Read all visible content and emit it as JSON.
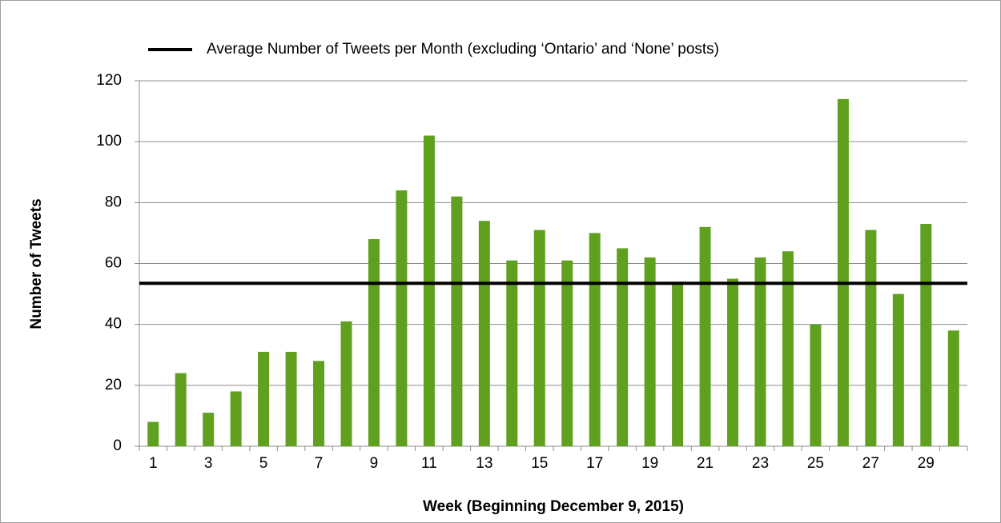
{
  "chart_data": {
    "type": "bar",
    "y_axis_label": "Number of Tweets",
    "x_axis_label": "Week (Beginning December 9, 2015)",
    "categories": [
      "1",
      null,
      "3",
      null,
      "5",
      null,
      "7",
      null,
      "9",
      null,
      "11",
      null,
      "13",
      null,
      "15",
      null,
      "17",
      null,
      "19",
      null,
      "21",
      null,
      "23",
      null,
      "25",
      null,
      "27",
      null,
      "29",
      null
    ],
    "values": [
      8,
      24,
      11,
      18,
      31,
      31,
      28,
      41,
      68,
      84,
      102,
      82,
      74,
      61,
      71,
      61,
      70,
      65,
      62,
      54,
      72,
      55,
      62,
      64,
      40,
      114,
      71,
      50,
      73,
      38
    ],
    "color": "#5fa01f",
    "ylim": [
      0,
      120
    ],
    "yticks": [
      0,
      20,
      40,
      60,
      80,
      100,
      120
    ],
    "grid": true,
    "reference_line": {
      "name": "Average Number of Tweets per Month (excluding ‘Ontario’ and ‘None’ posts)",
      "value": 53.5,
      "color": "#000000"
    },
    "legend": "top"
  }
}
